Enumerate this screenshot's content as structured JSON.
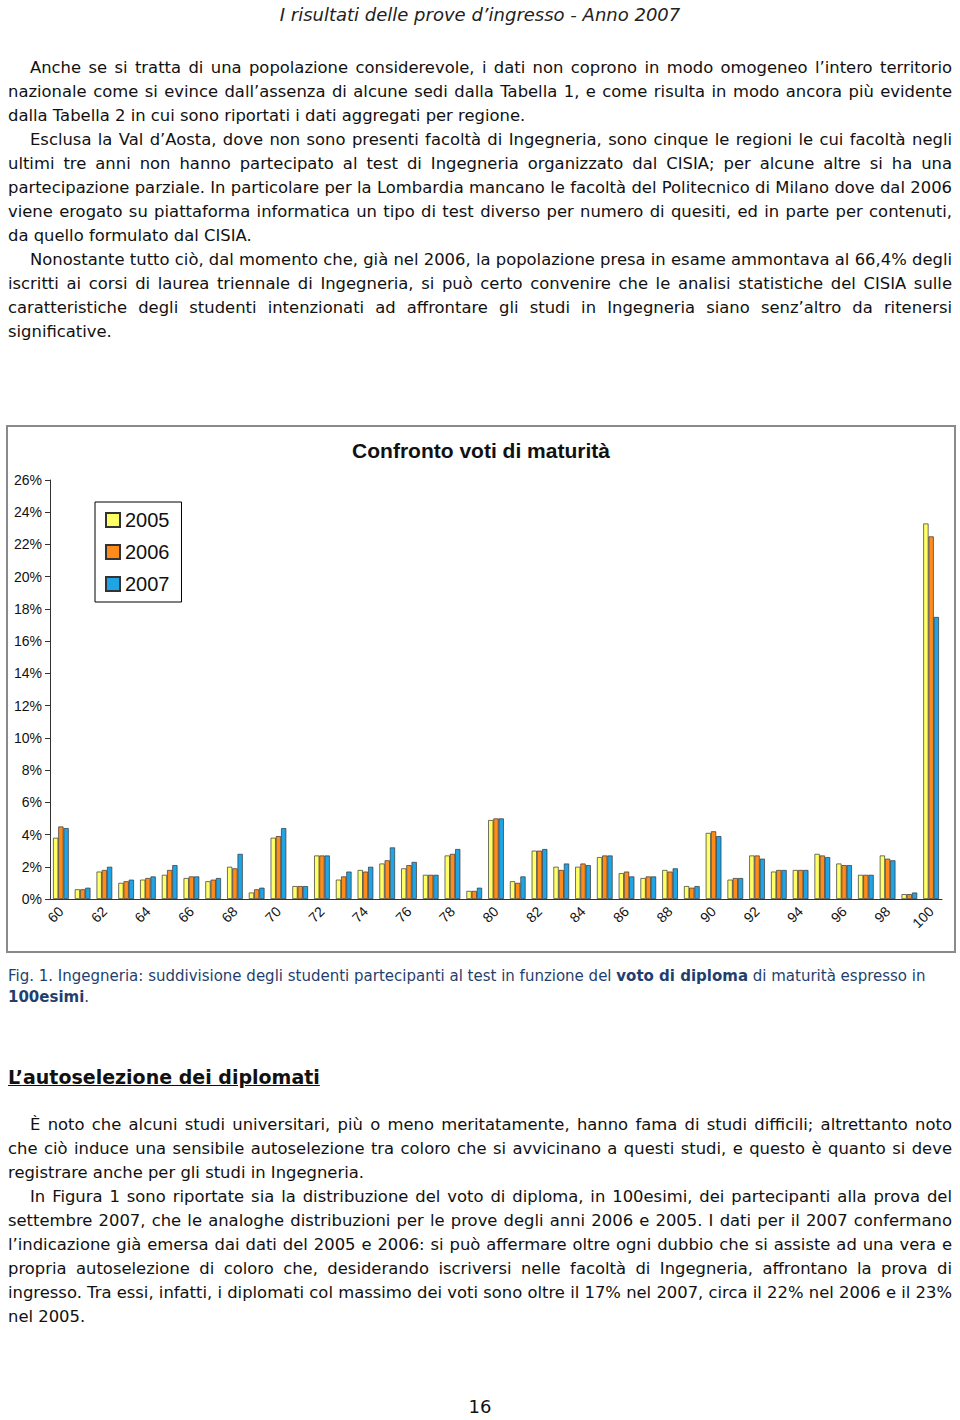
{
  "header": "I risultati delle prove d’ingresso - Anno 2007",
  "section1": [
    "Anche se si tratta di una popolazione considerevole, i dati non coprono in modo omogeneo l’intero territorio nazionale come si evince dall’assenza di alcune sedi dalla Tabella 1, e come risulta in modo ancora più evidente dalla Tabella 2 in cui sono riportati i dati aggregati per regione.",
    "Esclusa la Val d’Aosta, dove non sono presenti facoltà di Ingegneria, sono cinque le regioni le cui facoltà negli ultimi tre anni non hanno partecipato al test di Ingegneria organizzato dal CISIA; per alcune altre si ha una partecipazione parziale. In particolare per la Lombardia mancano le facoltà del Politecnico di Milano dove dal 2006 viene erogato su piattaforma informatica un tipo di test diverso per numero di quesiti, ed in parte per contenuti, da quello formulato dal CISIA.",
    "Nonostante tutto ciò, dal momento che, già nel 2006, la popolazione presa in esame ammontava al 66,4% degli iscritti ai corsi di laurea triennale di Ingegneria, si può certo convenire che le analisi statistiche del CISIA sulle caratteristiche degli studenti intenzionati ad affrontare gli studi in Ingegneria siano senz’altro da ritenersi significative."
  ],
  "chart_data": {
    "type": "bar",
    "title": "Confronto voti di maturità",
    "categories": [
      60,
      null,
      62,
      null,
      64,
      null,
      66,
      null,
      68,
      null,
      70,
      null,
      72,
      null,
      74,
      null,
      76,
      null,
      78,
      null,
      80,
      null,
      82,
      null,
      84,
      null,
      86,
      null,
      88,
      null,
      90,
      null,
      92,
      null,
      94,
      null,
      96,
      null,
      98,
      null,
      100
    ],
    "series": [
      {
        "name": "2005",
        "color": "#ffff66",
        "values": [
          3.8,
          0.6,
          1.7,
          1.0,
          1.2,
          1.5,
          1.3,
          1.1,
          2.0,
          0.4,
          3.8,
          0.8,
          2.7,
          1.2,
          1.8,
          2.2,
          1.9,
          1.5,
          2.7,
          0.5,
          4.9,
          1.1,
          3.0,
          2.0,
          2.0,
          2.6,
          1.6,
          1.3,
          1.8,
          0.8,
          4.1,
          1.2,
          2.7,
          1.7,
          1.8,
          2.8,
          2.2,
          1.5,
          2.7,
          0.3,
          23.3
        ]
      },
      {
        "name": "2006",
        "color": "#ff8c1a",
        "values": [
          4.5,
          0.6,
          1.8,
          1.1,
          1.3,
          1.8,
          1.4,
          1.2,
          1.9,
          0.6,
          3.9,
          0.8,
          2.7,
          1.4,
          1.7,
          2.4,
          2.1,
          1.5,
          2.8,
          0.5,
          5.0,
          1.0,
          3.0,
          1.8,
          2.2,
          2.7,
          1.7,
          1.4,
          1.7,
          0.7,
          4.2,
          1.3,
          2.7,
          1.8,
          1.8,
          2.7,
          2.1,
          1.5,
          2.5,
          0.3,
          22.5
        ]
      },
      {
        "name": "2007",
        "color": "#1fa5e6",
        "values": [
          4.4,
          0.7,
          2.0,
          1.2,
          1.4,
          2.1,
          1.4,
          1.3,
          2.8,
          0.7,
          4.4,
          0.8,
          2.7,
          1.7,
          2.0,
          3.2,
          2.3,
          1.5,
          3.1,
          0.7,
          5.0,
          1.4,
          3.1,
          2.2,
          2.1,
          2.7,
          1.4,
          1.4,
          1.9,
          0.8,
          3.9,
          1.3,
          2.5,
          1.8,
          1.8,
          2.6,
          2.1,
          1.5,
          2.4,
          0.4,
          17.5
        ]
      }
    ],
    "ylim": [
      0,
      26
    ],
    "yticks": [
      {
        "value": 0,
        "label": "0%"
      },
      {
        "value": 2,
        "label": "2%"
      },
      {
        "value": 4,
        "label": "4%"
      },
      {
        "value": 6,
        "label": "6%"
      },
      {
        "value": 8,
        "label": "8%"
      },
      {
        "value": 10,
        "label": "10%"
      },
      {
        "value": 12,
        "label": "12%"
      },
      {
        "value": 14,
        "label": "14%"
      },
      {
        "value": 16,
        "label": "16%"
      },
      {
        "value": 18,
        "label": "18%"
      },
      {
        "value": 20,
        "label": "20%"
      },
      {
        "value": 22,
        "label": "22%"
      },
      {
        "value": 24,
        "label": "24%"
      },
      {
        "value": 26,
        "label": "26%"
      }
    ],
    "grid": false,
    "legend": "upper left"
  },
  "caption": {
    "text": "Fig. 1. Ingegneria: suddivisione degli studenti partecipanti al test in funzione del voto di diploma di maturità espresso in 100esimi.",
    "bold": [
      "voto di diploma",
      "100esimi"
    ]
  },
  "heading": "L’autoselezione dei diplomati",
  "section2": [
    "È noto che alcuni studi universitari, più o meno meritatamente, hanno fama di studi difficili; altrettanto noto che ciò induce una sensibile autoselezione tra coloro che si avvicinano a questi studi, e questo è quanto si deve registrare anche per gli studi in Ingegneria.",
    "In Figura 1 sono riportate sia la distribuzione del voto di diploma, in 100esimi, dei partecipanti alla prova del settembre 2007, che le analoghe distribuzioni per le prove degli anni 2006 e 2005. I dati per il 2007 confermano l’indicazione già emersa dai dati del 2005 e 2006: si può affermare oltre ogni dubbio che si assiste ad una vera e propria autoselezione di coloro che, desiderando iscriversi nelle facoltà di Ingegneria, affrontano la prova di ingresso. Tra essi, infatti, i diplomati col massimo dei voti sono oltre il 17% nel 2007, circa il 22% nel 2006 e il 23% nel 2005."
  ],
  "page_number": "16"
}
